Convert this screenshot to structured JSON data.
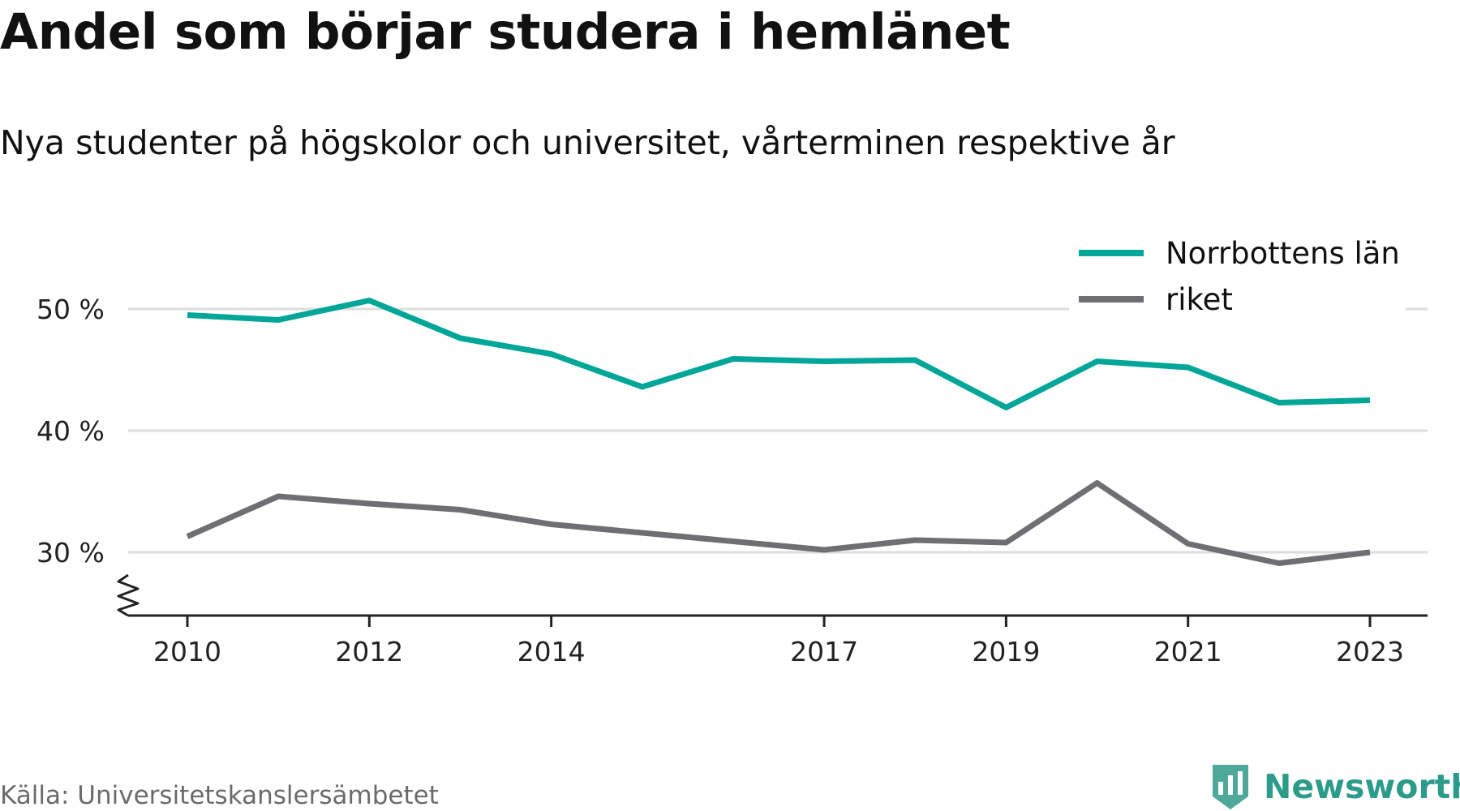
{
  "title": "Andel som börjar studera i hemlänet",
  "subtitle": "Nya studenter på högskolor och universitet, vårterminen respektive år",
  "source": "Källa: Universitetskanslersämbetet",
  "brand": {
    "name": "Newsworthy",
    "icon": "bar-chart-shield-icon",
    "color": "#2c9b8a"
  },
  "chart_data": {
    "type": "line",
    "title": "Andel som börjar studera i hemlänet",
    "subtitle": "Nya studenter på högskolor och universitet, vårterminen respektive år",
    "x": [
      2010,
      2011,
      2012,
      2013,
      2014,
      2015,
      2016,
      2017,
      2018,
      2019,
      2020,
      2021,
      2022,
      2023
    ],
    "x_ticks": [
      2010,
      2012,
      2014,
      2017,
      2019,
      2021,
      2023
    ],
    "y_ticks": [
      30,
      40,
      50
    ],
    "y_tick_labels": [
      "30 %",
      "40 %",
      "50 %"
    ],
    "ylim": [
      25,
      52
    ],
    "y_axis_break": true,
    "grid": true,
    "legend_position": "top-right",
    "series": [
      {
        "name": "Norrbottens län",
        "color": "#00a698",
        "values": [
          49.5,
          49.1,
          50.7,
          47.6,
          46.3,
          43.6,
          45.9,
          45.7,
          45.8,
          41.9,
          45.7,
          45.2,
          42.3,
          42.5
        ]
      },
      {
        "name": "riket",
        "color": "#6f6e73",
        "values": [
          31.3,
          34.6,
          34.0,
          33.5,
          32.3,
          31.6,
          30.9,
          30.2,
          31.0,
          30.8,
          35.7,
          30.7,
          29.1,
          30.0
        ]
      }
    ]
  }
}
